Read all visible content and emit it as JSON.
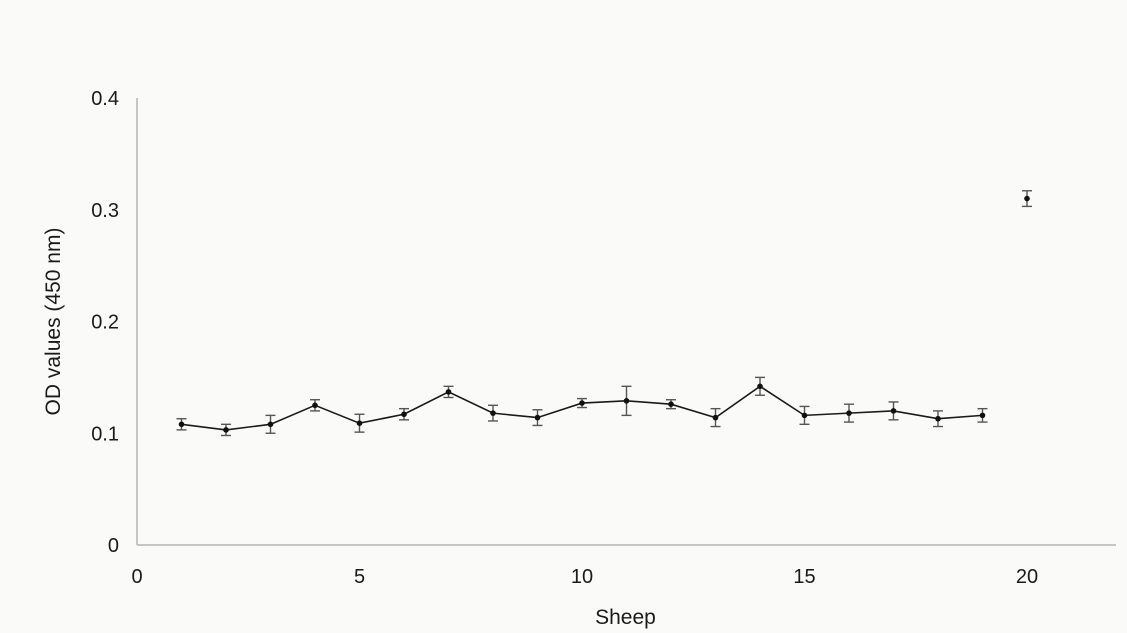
{
  "chart_data": {
    "type": "scatter",
    "title": "",
    "xlabel": "Sheep",
    "ylabel": "OD values (450 nm)",
    "xlim": [
      0,
      22
    ],
    "ylim": [
      0,
      0.4
    ],
    "x_ticks": [
      0,
      5,
      10,
      15,
      20
    ],
    "y_ticks": [
      0,
      0.1,
      0.2,
      0.3,
      0.4
    ],
    "x_tick_labels": [
      "0",
      "5",
      "10",
      "15",
      "20"
    ],
    "y_tick_labels": [
      "0",
      "0.1",
      "0.2",
      "0.3",
      "0.4"
    ],
    "grid": false,
    "legend": "none",
    "colors": {
      "line": "#1a1a1a",
      "marker": "#111111",
      "error_bar": "#555555",
      "axis": "#b5b5b5"
    },
    "series": [
      {
        "style": "line",
        "x": [
          1,
          2,
          3,
          4,
          5,
          6,
          7,
          8,
          9,
          10,
          11,
          12,
          13,
          14,
          15,
          16,
          17,
          18,
          19
        ],
        "y": [
          0.108,
          0.103,
          0.108,
          0.125,
          0.109,
          0.117,
          0.137,
          0.118,
          0.114,
          0.127,
          0.129,
          0.126,
          0.114,
          0.142,
          0.116,
          0.118,
          0.12,
          0.113,
          0.116
        ],
        "err": [
          0.005,
          0.005,
          0.008,
          0.005,
          0.008,
          0.005,
          0.005,
          0.007,
          0.007,
          0.004,
          0.013,
          0.004,
          0.008,
          0.008,
          0.008,
          0.008,
          0.008,
          0.007,
          0.006
        ]
      },
      {
        "style": "point",
        "x": [
          20
        ],
        "y": [
          0.31
        ],
        "err": [
          0.007
        ]
      }
    ]
  }
}
